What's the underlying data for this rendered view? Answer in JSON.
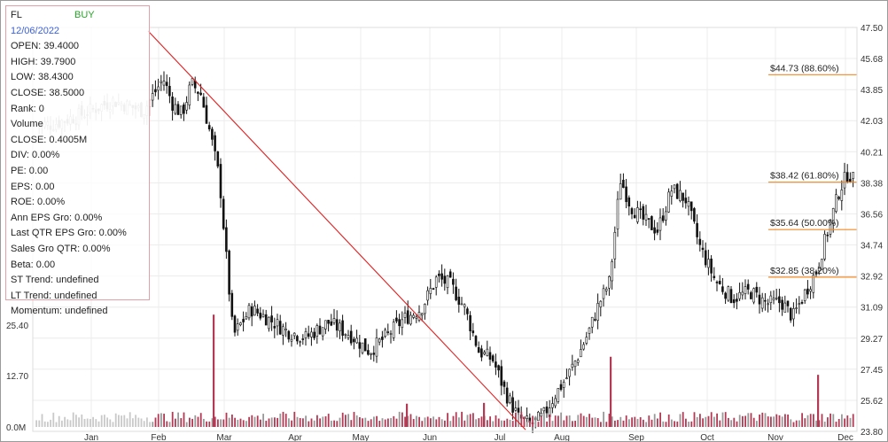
{
  "info": {
    "ticker": "FL",
    "signal": "BUY",
    "date": "12/06/2022",
    "rows": [
      "OPEN: 39.4000",
      "HIGH: 39.7900",
      "LOW: 38.4300",
      "CLOSE: 38.5000",
      "Rank: 0",
      "Volume",
      "CLOSE: 0.4005M",
      "DIV: 0.00%",
      "PE: 0.00",
      "EPS: 0.00",
      "ROE: 0.00%",
      "Ann EPS Gro: 0.00%",
      "Last QTR EPS Gro: 0.00%",
      "Sales Gro QTR: 0.00%",
      "Beta: 0.00",
      "ST Trend: undefined",
      "LT Trend: undefined",
      "Momentum: undefined"
    ]
  },
  "chart_data": {
    "type": "candlestick",
    "price_axis": {
      "ticks": [
        "47.50",
        "45.68",
        "43.85",
        "42.03",
        "40.21",
        "38.38",
        "36.56",
        "34.74",
        "32.92",
        "31.09",
        "29.27",
        "27.45",
        "25.62",
        "23.80"
      ],
      "ylim": [
        23.8,
        47.5
      ]
    },
    "volume_axis": {
      "ticks": [
        "25.40",
        "12.70",
        "0.0M"
      ]
    },
    "x_ticks": [
      "Jan",
      "Feb",
      "Mar",
      "Apr",
      "May",
      "Jun",
      "Jul",
      "Aug",
      "Sep",
      "Oct",
      "Nov",
      "Dec"
    ],
    "fib_levels": [
      {
        "label": "$44.73 (88.60%)",
        "price": 44.73
      },
      {
        "label": "$38.42 (61.80%)",
        "price": 38.42
      },
      {
        "label": "$35.64 (50.00%)",
        "price": 35.64
      },
      {
        "label": "$32.85 (38.20%)",
        "price": 32.85
      }
    ],
    "trendline": {
      "from_month": "Feb",
      "from_price": 47.3,
      "to_month": "Jul",
      "to_price": 23.9
    },
    "price_path": [
      [
        "Jan",
        41.8
      ],
      [
        "Jan",
        42.4
      ],
      [
        "Jan",
        43.2
      ],
      [
        "Jan",
        42.6
      ],
      [
        "Feb",
        44.5
      ],
      [
        "Feb",
        43.0
      ],
      [
        "Feb",
        42.4
      ],
      [
        "Feb",
        44.2
      ],
      [
        "Feb",
        43.6
      ],
      [
        "Feb",
        41.3
      ],
      [
        "Feb",
        38.6
      ],
      [
        "Mar",
        29.4
      ],
      [
        "Mar",
        31.0
      ],
      [
        "Mar",
        30.4
      ],
      [
        "Mar",
        29.7
      ],
      [
        "Apr",
        29.3
      ],
      [
        "Apr",
        30.2
      ],
      [
        "Apr",
        29.5
      ],
      [
        "May",
        28.5
      ],
      [
        "May",
        29.4
      ],
      [
        "May",
        30.4
      ],
      [
        "May",
        31.0
      ],
      [
        "Jun",
        32.8
      ],
      [
        "Jun",
        32.4
      ],
      [
        "Jun",
        31.0
      ],
      [
        "Jun",
        28.5
      ],
      [
        "Jun",
        28.0
      ],
      [
        "Jul",
        26.0
      ],
      [
        "Jul",
        24.6
      ],
      [
        "Jul",
        24.2
      ],
      [
        "Jul",
        24.7
      ],
      [
        "Jul",
        26.0
      ],
      [
        "Aug",
        27.0
      ],
      [
        "Aug",
        28.2
      ],
      [
        "Aug",
        29.6
      ],
      [
        "Aug",
        31.3
      ],
      [
        "Aug",
        32.6
      ],
      [
        "Aug",
        38.6
      ],
      [
        "Aug",
        37.0
      ],
      [
        "Sep",
        36.2
      ],
      [
        "Sep",
        35.6
      ],
      [
        "Sep",
        38.0
      ],
      [
        "Sep",
        37.4
      ],
      [
        "Sep",
        34.6
      ],
      [
        "Oct",
        32.6
      ],
      [
        "Oct",
        31.6
      ],
      [
        "Oct",
        32.0
      ],
      [
        "Oct",
        31.3
      ],
      [
        "Nov",
        31.4
      ],
      [
        "Nov",
        30.5
      ],
      [
        "Nov",
        31.9
      ],
      [
        "Nov",
        33.2
      ],
      [
        "Nov",
        35.6
      ],
      [
        "Nov",
        38.0
      ],
      [
        "Dec",
        39.0
      ],
      [
        "Dec",
        38.5
      ]
    ],
    "volume_spikes": [
      [
        "Mar",
        28.0
      ],
      [
        "Jun",
        5.8
      ],
      [
        "Jul",
        6.0
      ],
      [
        "Aug",
        17.5
      ],
      [
        "Nov",
        13.0
      ]
    ]
  }
}
